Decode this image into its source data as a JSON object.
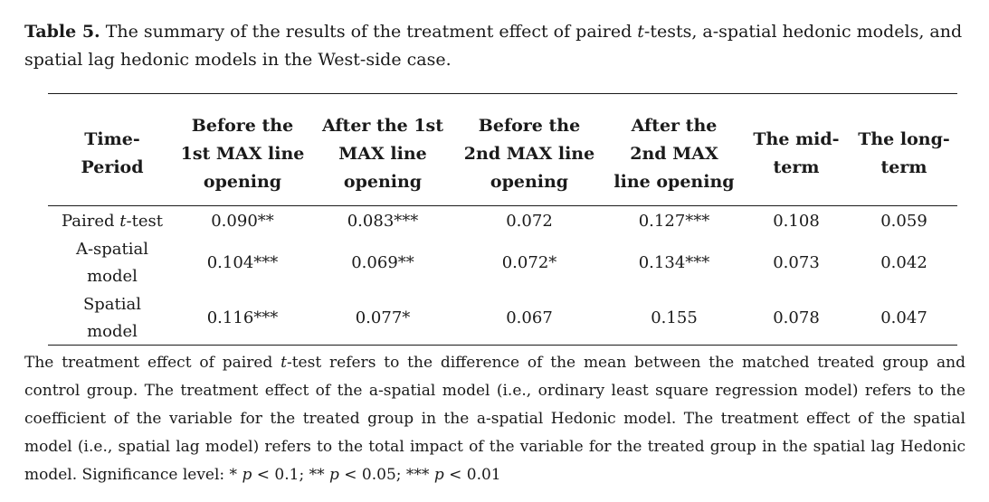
{
  "caption": {
    "label": "Table 5.",
    "text_a": " The summary of the results of the treatment effect of paired ",
    "text_italic": "t",
    "text_b": "-tests, a-spatial hedonic models, and spatial lag hedonic models in the West-side case."
  },
  "table": {
    "header": {
      "col0_line1": "Time-",
      "col0_line2": "Period",
      "col1_line1": "Before the",
      "col1_line2": "1st MAX line",
      "col1_line3": "opening",
      "col2_line1": "After the 1st",
      "col2_line2": "MAX line",
      "col2_line3": "opening",
      "col3_line1": "Before the",
      "col3_line2": "2nd MAX line",
      "col3_line3": "opening",
      "col4_line1": "After the",
      "col4_line2": "2nd MAX",
      "col4_line3": "line opening",
      "col5_line1": "The mid-",
      "col5_line2": "term",
      "col6_line1": "The long-",
      "col6_line2": "term"
    },
    "rows": [
      {
        "label_a": "Paired ",
        "label_italic": "t",
        "label_b": "-test",
        "values": [
          "0.090**",
          "0.083***",
          "0.072",
          "0.127***",
          "0.108",
          "0.059"
        ]
      },
      {
        "label_line1": "A-spatial",
        "label_line2": "model",
        "values": [
          "0.104***",
          "0.069**",
          "0.072*",
          "0.134***",
          "0.073",
          "0.042"
        ]
      },
      {
        "label_line1": "Spatial",
        "label_line2": "model",
        "values": [
          "0.116***",
          "0.077*",
          "0.067",
          "0.155",
          "0.078",
          "0.047"
        ]
      }
    ]
  },
  "note": {
    "s1_a": "The treatment effect of paired ",
    "s1_italic": "t",
    "s1_b": "-test refers to the difference of the mean between the matched treated group and control group. The treatment effect of the a-spatial model (i.e., ordinary least square regression model) refers to the coefficient of the variable for the treated group in the a-spatial Hedonic model. The treatment effect of the spatial model (i.e., spatial lag model) refers to the total impact of the variable for the treated group in the spatial lag Hedonic model. Significance level: * ",
    "p1": "p",
    "lt1": " < 0.1; ** ",
    "p2": "p",
    "lt2": " < 0.05; *** ",
    "p3": "p",
    "lt3": " < 0.01"
  }
}
